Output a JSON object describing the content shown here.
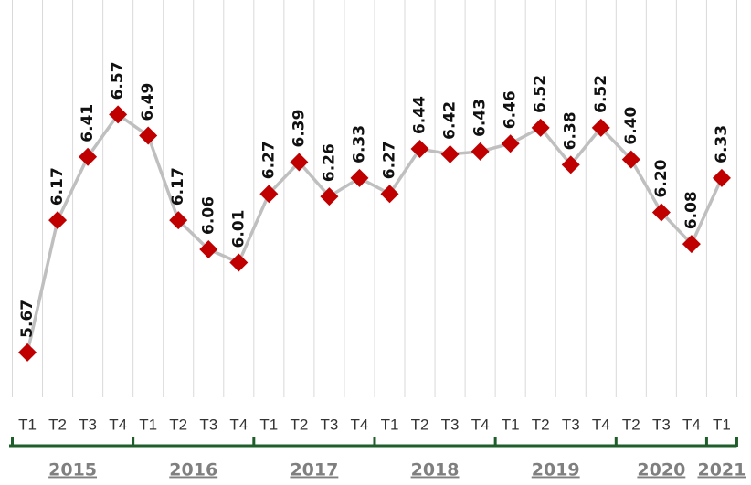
{
  "chart_data": {
    "type": "line",
    "groups": [
      {
        "name": "2015",
        "categories": [
          "T1",
          "T2",
          "T3",
          "T4"
        ]
      },
      {
        "name": "2016",
        "categories": [
          "T1",
          "T2",
          "T3",
          "T4"
        ]
      },
      {
        "name": "2017",
        "categories": [
          "T1",
          "T2",
          "T3",
          "T4"
        ]
      },
      {
        "name": "2018",
        "categories": [
          "T1",
          "T2",
          "T3",
          "T4"
        ]
      },
      {
        "name": "2019",
        "categories": [
          "T1",
          "T2",
          "T3",
          "T4"
        ]
      },
      {
        "name": "2020",
        "categories": [
          "T2",
          "T3",
          "T4"
        ]
      },
      {
        "name": "2021",
        "categories": [
          "T1"
        ]
      }
    ],
    "values": [
      5.67,
      6.17,
      6.41,
      6.57,
      6.49,
      6.17,
      6.06,
      6.01,
      6.27,
      6.39,
      6.26,
      6.33,
      6.27,
      6.44,
      6.42,
      6.43,
      6.46,
      6.52,
      6.38,
      6.52,
      6.4,
      6.2,
      6.08,
      6.33
    ],
    "value_labels": [
      "5.67",
      "6.17",
      "6.41",
      "6.57",
      "6.49",
      "6.17",
      "6.06",
      "6.01",
      "6.27",
      "6.39",
      "6.26",
      "6.33",
      "6.27",
      "6.44",
      "6.42",
      "6.43",
      "6.46",
      "6.52",
      "6.38",
      "6.52",
      "6.40",
      "6.20",
      "6.08",
      "6.33"
    ],
    "line_color": "#bfbfbf",
    "marker_color": "#c00000",
    "group_color": "#1e5e2a",
    "ylim": [
      5.5,
      7.0
    ]
  }
}
